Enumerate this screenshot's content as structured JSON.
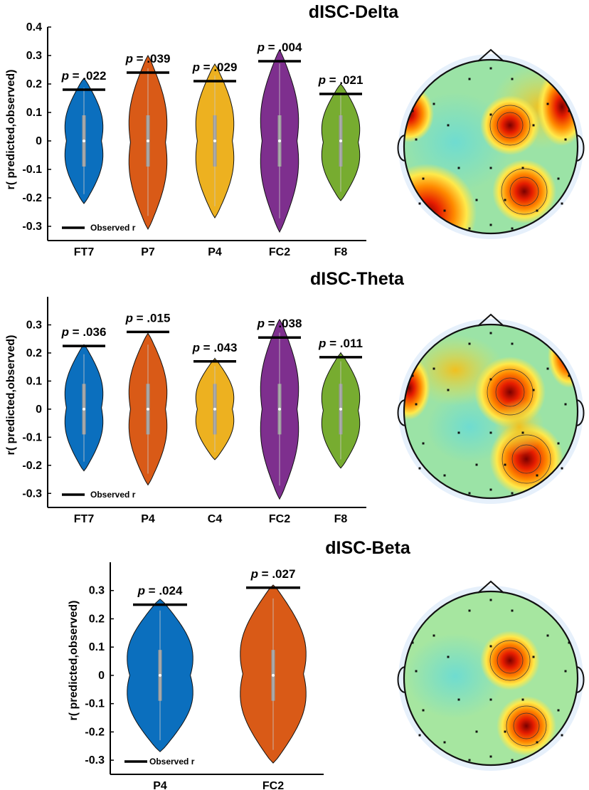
{
  "chart_data": [
    {
      "type": "violin",
      "title": "dISC-Delta",
      "ylabel": "r( predicted,observed)",
      "ylim": [
        -0.35,
        0.4
      ],
      "yticks": [
        0.4,
        0.3,
        0.2,
        0.1,
        0,
        -0.1,
        -0.2,
        -0.3
      ],
      "ytick_labels": [
        "0.4",
        "0.3",
        "0.2",
        "0.1",
        "0",
        "-0.1",
        "-0.2",
        "-0.3"
      ],
      "legend_label": "Observed r",
      "categories": [
        "FT7",
        "P7",
        "P4",
        "FC2",
        "F8"
      ],
      "observed_r": [
        0.18,
        0.24,
        0.21,
        0.28,
        0.165
      ],
      "p_labels": [
        "p = .022",
        "p = .039",
        "p = .029",
        "p = .004",
        "p = .021"
      ],
      "colors": [
        "#0B6FBE",
        "#D95A17",
        "#EDB120",
        "#7E2F8E",
        "#77AC30"
      ],
      "null_range": [
        [
          -0.22,
          0.22
        ],
        [
          -0.31,
          0.3
        ],
        [
          -0.27,
          0.27
        ],
        [
          -0.32,
          0.32
        ],
        [
          -0.21,
          0.2
        ]
      ]
    },
    {
      "type": "violin",
      "title": "dISC-Theta",
      "ylabel": "r( predicted,observed)",
      "ylim": [
        -0.35,
        0.4
      ],
      "yticks": [
        0.3,
        0.2,
        0.1,
        0,
        -0.1,
        -0.2,
        -0.3
      ],
      "ytick_labels": [
        "0.3",
        "0.2",
        "0.1",
        "0",
        "-0.1",
        "-0.2",
        "-0.3"
      ],
      "legend_label": "Observed r",
      "categories": [
        "FT7",
        "P4",
        "C4",
        "FC2",
        "F8"
      ],
      "observed_r": [
        0.225,
        0.275,
        0.17,
        0.255,
        0.185
      ],
      "p_labels": [
        "p = .036",
        "p = .015",
        "p = .043",
        "p = .038",
        "p = .011"
      ],
      "colors": [
        "#0B6FBE",
        "#D95A17",
        "#EDB120",
        "#7E2F8E",
        "#77AC30"
      ],
      "null_range": [
        [
          -0.22,
          0.23
        ],
        [
          -0.27,
          0.27
        ],
        [
          -0.18,
          0.18
        ],
        [
          -0.32,
          0.32
        ],
        [
          -0.21,
          0.2
        ]
      ]
    },
    {
      "type": "violin",
      "title": "dISC-Beta",
      "ylabel": "r( predicted,observed)",
      "ylim": [
        -0.35,
        0.4
      ],
      "yticks": [
        0.3,
        0.2,
        0.1,
        0,
        -0.1,
        -0.2,
        -0.3
      ],
      "ytick_labels": [
        "0.3",
        "0.2",
        "0.1",
        "0",
        "-0.1",
        "-0.2",
        "-0.3"
      ],
      "legend_label": "Observed r",
      "categories": [
        "P4",
        "FC2"
      ],
      "observed_r": [
        0.25,
        0.31
      ],
      "p_labels": [
        "p = .024",
        "p = .027"
      ],
      "colors": [
        "#0B6FBE",
        "#D95A17"
      ],
      "null_range": [
        [
          -0.27,
          0.27
        ],
        [
          -0.31,
          0.32
        ]
      ]
    }
  ],
  "scalp_maps": [
    {
      "name": "delta",
      "hotspots": [
        "frontal-central",
        "right-parietal",
        "left-temporal"
      ]
    },
    {
      "name": "theta",
      "hotspots": [
        "frontal-central",
        "right-parietal",
        "left-temporal"
      ]
    },
    {
      "name": "beta",
      "hotspots": [
        "frontal-central",
        "right-parietal"
      ]
    }
  ]
}
